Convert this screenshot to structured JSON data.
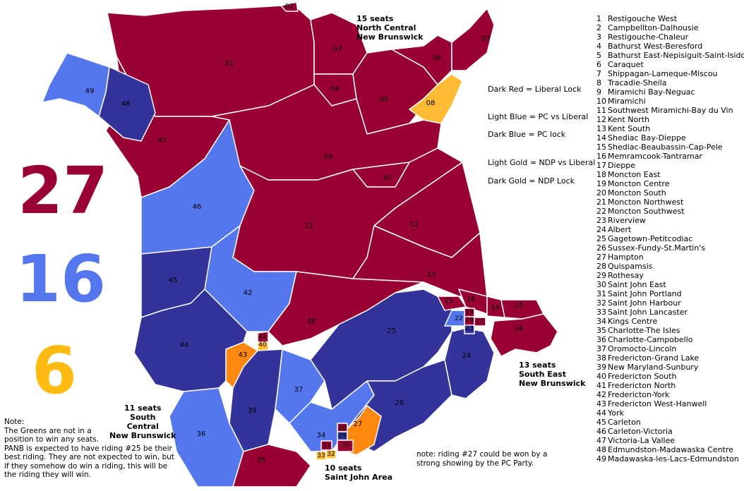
{
  "totals": [
    {
      "value": "27",
      "color": "#990033"
    },
    {
      "value": "16",
      "color": "#5577ee"
    },
    {
      "value": "6",
      "color": "#ffbb11"
    }
  ],
  "colors": {
    "dark_red": "#990033",
    "light_blue": "#5577ee",
    "dark_blue": "#333399",
    "light_gold": "#ffbb33",
    "dark_gold": "#ff8811"
  },
  "region_labels": [
    {
      "count": "15 seats",
      "line2": "North Central",
      "line3": "New Brunswick"
    },
    {
      "count": "13 seats",
      "line2": "South East",
      "line3": "New Brunswick"
    },
    {
      "count": "11 seats",
      "line2": "South",
      "line3": "Central",
      "line4": "New Brunswick"
    },
    {
      "count": "10 seats",
      "line2": "Saint John Area"
    }
  ],
  "legend": [
    "Dark Red = Liberal Lock",
    "Light Blue = PC vs Liberal",
    "Dark Blue = PC lock",
    "Light Gold = NDP vs Liberal",
    "Dark Gold = NDP Lock"
  ],
  "ridings": [
    {
      "num": "1",
      "name": "Restigouche West"
    },
    {
      "num": "2",
      "name": "Campbellton-Dalhousie"
    },
    {
      "num": "3",
      "name": "Restigouche-Chaleur"
    },
    {
      "num": "4",
      "name": "Bathurst West-Beresford"
    },
    {
      "num": "5",
      "name": "Bathurst East-Nepisiguit-Saint-Isidore"
    },
    {
      "num": "6",
      "name": "Caraquet"
    },
    {
      "num": "7",
      "name": "Shippagan-Lameque-Miscou"
    },
    {
      "num": "8",
      "name": "Tracadie-Sheila"
    },
    {
      "num": "9",
      "name": "Miramichi Bay-Neguac"
    },
    {
      "num": "10",
      "name": "Miramichi"
    },
    {
      "num": "11",
      "name": "Southwest Miramichi-Bay du Vin"
    },
    {
      "num": "12",
      "name": "Kent North"
    },
    {
      "num": "13",
      "name": "Kent South"
    },
    {
      "num": "14",
      "name": "Shediac Bay-Dieppe"
    },
    {
      "num": "15",
      "name": "Shediac-Beaubassin-Cap-Pele"
    },
    {
      "num": "16",
      "name": "Memramcook-Tantramar"
    },
    {
      "num": "17",
      "name": "Dieppe"
    },
    {
      "num": "18",
      "name": "Moncton East"
    },
    {
      "num": "19",
      "name": "Moncton Centre"
    },
    {
      "num": "20",
      "name": "Moncton South"
    },
    {
      "num": "21",
      "name": "Moncton Northwest"
    },
    {
      "num": "22",
      "name": "Moncton Southwest"
    },
    {
      "num": "23",
      "name": "Riverview"
    },
    {
      "num": "24",
      "name": "Albert"
    },
    {
      "num": "25",
      "name": "Gagetown-Petitcodiac"
    },
    {
      "num": "26",
      "name": "Sussex-Fundy-St.Martin's"
    },
    {
      "num": "27",
      "name": "Hampton"
    },
    {
      "num": "28",
      "name": "Quispamsis"
    },
    {
      "num": "29",
      "name": "Rothesay"
    },
    {
      "num": "30",
      "name": "Saint John East"
    },
    {
      "num": "31",
      "name": "Saint John Portland"
    },
    {
      "num": "32",
      "name": "Saint John Harbour"
    },
    {
      "num": "33",
      "name": "Saint John Lancaster"
    },
    {
      "num": "34",
      "name": "Kings Centre"
    },
    {
      "num": "35",
      "name": "Charlotte-The Isles"
    },
    {
      "num": "36",
      "name": "Charlotte-Campobello"
    },
    {
      "num": "37",
      "name": "Oromocto-Lincoln"
    },
    {
      "num": "38",
      "name": "Fredericton-Grand Lake"
    },
    {
      "num": "39",
      "name": "New Maryland-Sunbury"
    },
    {
      "num": "40",
      "name": "Fredericton South"
    },
    {
      "num": "41",
      "name": "Fredericton North"
    },
    {
      "num": "42",
      "name": "Fredericton-York"
    },
    {
      "num": "43",
      "name": "Fredericton West-Hanwell"
    },
    {
      "num": "44",
      "name": "York"
    },
    {
      "num": "45",
      "name": "Carleton"
    },
    {
      "num": "46",
      "name": "Carleton-Victoria"
    },
    {
      "num": "47",
      "name": "Victoria-La Vallee"
    },
    {
      "num": "48",
      "name": "Edmundston-Madawaska Centre"
    },
    {
      "num": "49",
      "name": "Madawaska-les-Lacs-Edmundston"
    }
  ],
  "notes": {
    "greens": [
      "Note:",
      "The Greens are not in a",
      "position to win any seats.",
      "PANB is expected to have riding #25 be their",
      "best riding. They are not expected to win, but",
      "if they somehow do win a riding, this will be",
      "the riding they will win."
    ],
    "riding27": [
      "note: riding #27 could be won by a",
      "strong showing by the PC Party."
    ]
  }
}
